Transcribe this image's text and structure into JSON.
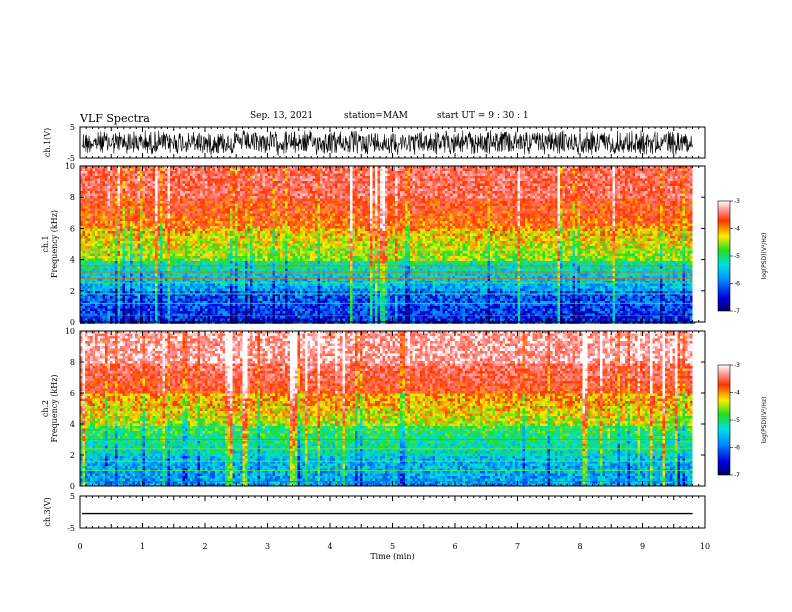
{
  "header": {
    "title": "VLF Spectra",
    "date": "Sep. 13, 2021",
    "station": "station=MAM",
    "start": "start UT =  9 : 30 : 1"
  },
  "colors": {
    "spectrum_low": "#00008b",
    "spectrum_mid_low": "#0066ff",
    "spectrum_mid": "#00e5e5",
    "spectrum_mid_high": "#22dd22",
    "spectrum_high_mid": "#ffee00",
    "spectrum_high": "#ff2200",
    "waveform": "#000000"
  },
  "x_axis": {
    "label": "Time  (min)",
    "range": [
      0,
      10
    ],
    "ticks": [
      "0",
      "1",
      "2",
      "3",
      "4",
      "5",
      "6",
      "7",
      "8",
      "9",
      "10"
    ]
  },
  "chart_data": [
    {
      "type": "line",
      "name": "ch1-waveform",
      "ylabel": "ch.1(V)",
      "yticks": [
        "5",
        "-5"
      ],
      "ylim": [
        -5,
        5
      ],
      "x_range": [
        0,
        9.8
      ],
      "envelope": "noisy, roughly -5 to +5 V across the full record"
    },
    {
      "type": "heatmap",
      "name": "ch1-spectrogram",
      "ylabel": "ch.1\nFrequency  (kHz)",
      "ylabel_lines": [
        "ch.1",
        "Frequency  (kHz)"
      ],
      "yticks": [
        "0",
        "2",
        "4",
        "6",
        "8",
        "10"
      ],
      "ylim": [
        0,
        10
      ],
      "x_range": [
        0,
        9.8
      ],
      "colorbar": {
        "label": "log(PSD)(V²/Hz)",
        "ticks": [
          "-3",
          "-4",
          "-5",
          "-6",
          "-7"
        ],
        "range": [
          -7,
          -3
        ]
      },
      "bands": [
        {
          "f_kHz": [
            0,
            2
          ],
          "log_psd": -6.4
        },
        {
          "f_kHz": [
            2,
            4
          ],
          "log_psd": -5.9
        },
        {
          "f_kHz": [
            4,
            6
          ],
          "log_psd": -4.8
        },
        {
          "f_kHz": [
            6,
            8
          ],
          "log_psd": -4.1
        },
        {
          "f_kHz": [
            8,
            10
          ],
          "log_psd": -3.6
        }
      ],
      "lines_kHz": [
        0.4,
        1.2,
        1.8,
        2.5,
        2.8,
        3.2,
        3.6,
        4.6
      ]
    },
    {
      "type": "heatmap",
      "name": "ch2-spectrogram",
      "ylabel": "ch.2\nFrequency  (kHz)",
      "ylabel_lines": [
        "ch.2",
        "Frequency  (kHz)"
      ],
      "yticks": [
        "0",
        "2",
        "4",
        "6",
        "8",
        "10"
      ],
      "ylim": [
        0,
        10
      ],
      "x_range": [
        0,
        9.8
      ],
      "colorbar": {
        "label": "log(PSD)(V²/Hz)",
        "ticks": [
          "-3",
          "-4",
          "-5",
          "-6",
          "-7"
        ],
        "range": [
          -7,
          -3
        ]
      },
      "bands": [
        {
          "f_kHz": [
            0,
            2
          ],
          "log_psd": -5.9
        },
        {
          "f_kHz": [
            2,
            4
          ],
          "log_psd": -5.5
        },
        {
          "f_kHz": [
            4,
            6
          ],
          "log_psd": -4.7
        },
        {
          "f_kHz": [
            6,
            8
          ],
          "log_psd": -3.9
        },
        {
          "f_kHz": [
            8,
            10
          ],
          "log_psd": -3.3
        }
      ],
      "lines_kHz": [
        0.3,
        1.0,
        1.6,
        2.4,
        3.0
      ]
    },
    {
      "type": "line",
      "name": "ch3-waveform",
      "ylabel": "ch.3(V)",
      "yticks": [
        "5",
        "-5"
      ],
      "ylim": [
        -5,
        5
      ],
      "x_range": [
        0,
        9.8
      ],
      "constant_value": -0.5
    }
  ]
}
